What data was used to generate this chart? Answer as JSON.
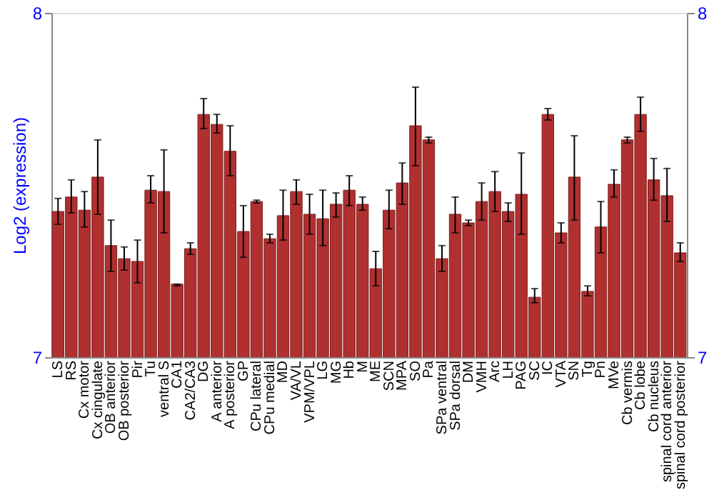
{
  "chart_data": {
    "type": "bar",
    "ylabel": "Log2 (expression)",
    "categories": [
      "LS",
      "RS",
      "Cx motor",
      "Cx cingulate",
      "OB anterior",
      "OB posterior",
      "Pir",
      "Tu",
      "ventral S",
      "CA1",
      "CA2/CA3",
      "DG",
      "A anterior",
      "A posterior",
      "GP",
      "CPu lateral",
      "CPu medial",
      "MD",
      "VA/VL",
      "VPM/VPL",
      "LG",
      "MG",
      "Hb",
      "M",
      "ME",
      "SCN",
      "MPA",
      "SO",
      "Pa",
      "SPa ventral",
      "SPa dorsal",
      "DM",
      "VMH",
      "Arc",
      "LH",
      "PAG",
      "SC",
      "IC",
      "VTA",
      "SN",
      "Tg",
      "Pn",
      "MVe",
      "Cb vermis",
      "Cb lobe",
      "Cb nucleus",
      "spinal cord anterior",
      "spinal cord posterior"
    ],
    "values": [
      7.423,
      7.465,
      7.427,
      7.523,
      7.324,
      7.286,
      7.278,
      7.485,
      7.481,
      7.212,
      7.315,
      7.705,
      7.676,
      7.598,
      7.365,
      7.452,
      7.344,
      7.411,
      7.481,
      7.415,
      7.402,
      7.444,
      7.485,
      7.444,
      7.257,
      7.427,
      7.506,
      7.672,
      7.631,
      7.286,
      7.415,
      7.39,
      7.452,
      7.481,
      7.423,
      7.473,
      7.174,
      7.705,
      7.361,
      7.523,
      7.191,
      7.378,
      7.502,
      7.631,
      7.705,
      7.515,
      7.469,
      7.303
    ],
    "errors": [
      [
        7.386,
        7.461
      ],
      [
        7.419,
        7.515
      ],
      [
        7.378,
        7.481
      ],
      [
        7.415,
        7.631
      ],
      [
        7.249,
        7.398
      ],
      [
        7.253,
        7.32
      ],
      [
        7.216,
        7.34
      ],
      [
        7.448,
        7.527
      ],
      [
        7.361,
        7.602
      ],
      [
        7.207,
        7.212
      ],
      [
        7.299,
        7.332
      ],
      [
        7.664,
        7.751
      ],
      [
        7.651,
        7.705
      ],
      [
        7.527,
        7.672
      ],
      [
        7.29,
        7.44
      ],
      [
        7.448,
        7.456
      ],
      [
        7.332,
        7.357
      ],
      [
        7.34,
        7.485
      ],
      [
        7.444,
        7.515
      ],
      [
        7.357,
        7.473
      ],
      [
        7.324,
        7.485
      ],
      [
        7.407,
        7.477
      ],
      [
        7.44,
        7.527
      ],
      [
        7.427,
        7.465
      ],
      [
        7.207,
        7.307
      ],
      [
        7.373,
        7.485
      ],
      [
        7.444,
        7.564
      ],
      [
        7.556,
        7.784
      ],
      [
        7.622,
        7.639
      ],
      [
        7.249,
        7.324
      ],
      [
        7.361,
        7.465
      ],
      [
        7.382,
        7.398
      ],
      [
        7.398,
        7.506
      ],
      [
        7.423,
        7.539
      ],
      [
        7.394,
        7.448
      ],
      [
        7.357,
        7.593
      ],
      [
        7.158,
        7.199
      ],
      [
        7.689,
        7.722
      ],
      [
        7.332,
        7.39
      ],
      [
        7.398,
        7.643
      ],
      [
        7.178,
        7.207
      ],
      [
        7.303,
        7.452
      ],
      [
        7.465,
        7.544
      ],
      [
        7.622,
        7.639
      ],
      [
        7.656,
        7.755
      ],
      [
        7.456,
        7.577
      ],
      [
        7.394,
        7.548
      ],
      [
        7.278,
        7.332
      ]
    ],
    "color": "#b03030",
    "ylim": [
      7,
      8
    ],
    "yticks": [
      7,
      8
    ],
    "y2lim": [
      7,
      8
    ],
    "y2ticks": [
      7,
      8
    ],
    "grid": false
  }
}
